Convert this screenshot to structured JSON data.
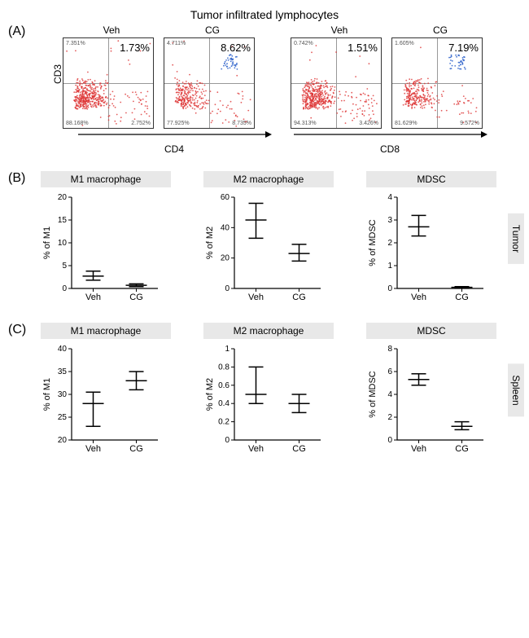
{
  "title": "Tumor infiltrated lymphocytes",
  "panelA": {
    "label": "(A)",
    "yAxis": "CD3",
    "groups": [
      {
        "xAxis": "CD4",
        "plots": [
          {
            "cond": "Veh",
            "main": "1.73%",
            "tl": "7.351%",
            "bl": "88.168%",
            "br": "2.752%",
            "clusterHeavy": true
          },
          {
            "cond": "CG",
            "main": "8.62%",
            "tl": "4.711%",
            "bl": "77.925%",
            "br": "8.735%",
            "clusterHeavy": false,
            "blueUR": true
          }
        ]
      },
      {
        "xAxis": "CD8",
        "plots": [
          {
            "cond": "Veh",
            "main": "1.51%",
            "tl": "0.742%",
            "bl": "94.313%",
            "br": "3.426%",
            "clusterHeavy": true
          },
          {
            "cond": "CG",
            "main": "7.19%",
            "tl": "1.605%",
            "bl": "81.629%",
            "br": "9.572%",
            "clusterHeavy": false,
            "blueUR": true
          }
        ]
      }
    ]
  },
  "panelB": {
    "label": "(B)",
    "side": "Tumor",
    "charts": [
      {
        "title": "M1 macrophage",
        "yTitle": "% of M1",
        "ylim": [
          0,
          20
        ],
        "yticks": [
          0,
          5,
          10,
          15,
          20
        ],
        "points": [
          {
            "cat": "Veh",
            "mean": 2.7,
            "lo": 1.8,
            "hi": 3.8
          },
          {
            "cat": "CG",
            "mean": 0.7,
            "lo": 0.4,
            "hi": 1.0
          }
        ]
      },
      {
        "title": "M2 macrophage",
        "yTitle": "% of M2",
        "ylim": [
          0,
          60
        ],
        "yticks": [
          0,
          20,
          40,
          60
        ],
        "points": [
          {
            "cat": "Veh",
            "mean": 45,
            "lo": 33,
            "hi": 56
          },
          {
            "cat": "CG",
            "mean": 23,
            "lo": 18,
            "hi": 29
          }
        ]
      },
      {
        "title": "MDSC",
        "yTitle": "% of MDSC",
        "ylim": [
          0,
          4
        ],
        "yticks": [
          0,
          1,
          2,
          3,
          4
        ],
        "points": [
          {
            "cat": "Veh",
            "mean": 2.7,
            "lo": 2.3,
            "hi": 3.2
          },
          {
            "cat": "CG",
            "mean": 0.05,
            "lo": 0.02,
            "hi": 0.08
          }
        ]
      }
    ]
  },
  "panelC": {
    "label": "(C)",
    "side": "Spleen",
    "charts": [
      {
        "title": "M1 macrophage",
        "yTitle": "% of M1",
        "ylim": [
          20,
          40
        ],
        "yticks": [
          20,
          25,
          30,
          35,
          40
        ],
        "points": [
          {
            "cat": "Veh",
            "mean": 28,
            "lo": 23,
            "hi": 30.5
          },
          {
            "cat": "CG",
            "mean": 33,
            "lo": 31,
            "hi": 35
          }
        ]
      },
      {
        "title": "M2 macrophage",
        "yTitle": "% of M2",
        "ylim": [
          0,
          1.0
        ],
        "yticks": [
          0,
          0.2,
          0.4,
          0.6,
          0.8,
          1.0
        ],
        "points": [
          {
            "cat": "Veh",
            "mean": 0.5,
            "lo": 0.4,
            "hi": 0.8
          },
          {
            "cat": "CG",
            "mean": 0.4,
            "lo": 0.3,
            "hi": 0.5
          }
        ]
      },
      {
        "title": "MDSC",
        "yTitle": "% of MDSC",
        "ylim": [
          0,
          8
        ],
        "yticks": [
          0,
          2,
          4,
          6,
          8
        ],
        "points": [
          {
            "cat": "Veh",
            "mean": 5.3,
            "lo": 4.8,
            "hi": 5.8
          },
          {
            "cat": "CG",
            "mean": 1.2,
            "lo": 0.9,
            "hi": 1.6
          }
        ]
      }
    ]
  },
  "colors": {
    "headerBg": "#e8e8e8",
    "red": "#dd3333",
    "blue": "#3366cc",
    "axis": "#000000"
  }
}
